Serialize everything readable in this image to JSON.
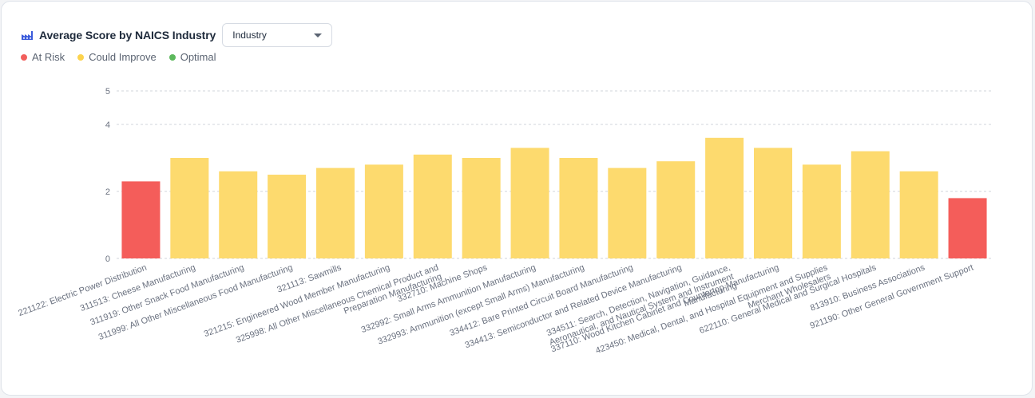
{
  "header": {
    "title": "Average Score by NAICS Industry",
    "icon": "factory-icon",
    "dropdown_value": "Industry"
  },
  "legend": [
    {
      "label": "At Risk",
      "color": "#f25f5c"
    },
    {
      "label": "Could Improve",
      "color": "#fcd34d"
    },
    {
      "label": "Optimal",
      "color": "#5cb85c"
    }
  ],
  "colors": {
    "at_risk": "#f45d5a",
    "could_improve": "#fdda6e",
    "grid": "#d1d5db",
    "axis_text": "#6b7280"
  },
  "chart_data": {
    "type": "bar",
    "ylim": [
      0,
      5
    ],
    "yticks": [
      0,
      2,
      4,
      5
    ],
    "grid": true,
    "legend_position": "top-left",
    "categories": [
      "221122: Electric Power Distribution",
      "311513: Cheese Manufacturing",
      "311919: Other Snack Food Manufacturing",
      "311999: All Other Miscellaneous Food Manufacturing",
      "321113: Sawmills",
      "321215: Engineered Wood Member Manufacturing",
      "325998: All Other Miscellaneous Chemical Product and Preparation Manufacturing",
      "332710: Machine Shops",
      "332992: Small Arms Ammunition Manufacturing",
      "332993: Ammunition (except Small Arms) Manufacturing",
      "334412: Bare Printed Circuit Board Manufacturing",
      "334413: Semiconductor and Related Device Manufacturing",
      "334511: Search, Detection, Navigation, Guidance, Aeronautical, and Nautical System and Instrument Manufacturing",
      "337110: Wood Kitchen Cabinet and Countertop Manufacturing",
      "423450: Medical, Dental, and Hospital Equipment and Supplies Merchant Wholesalers",
      "622110: General Medical and Surgical Hospitals",
      "813910: Business Associations",
      "921190: Other General Government Support"
    ],
    "values": [
      2.3,
      3.0,
      2.6,
      2.5,
      2.7,
      2.8,
      3.1,
      3.0,
      3.3,
      3.0,
      2.7,
      2.9,
      3.6,
      3.3,
      2.8,
      3.2,
      2.6,
      1.8
    ],
    "status": [
      "At Risk",
      "Could Improve",
      "Could Improve",
      "Could Improve",
      "Could Improve",
      "Could Improve",
      "Could Improve",
      "Could Improve",
      "Could Improve",
      "Could Improve",
      "Could Improve",
      "Could Improve",
      "Could Improve",
      "Could Improve",
      "Could Improve",
      "Could Improve",
      "Could Improve",
      "At Risk"
    ]
  }
}
